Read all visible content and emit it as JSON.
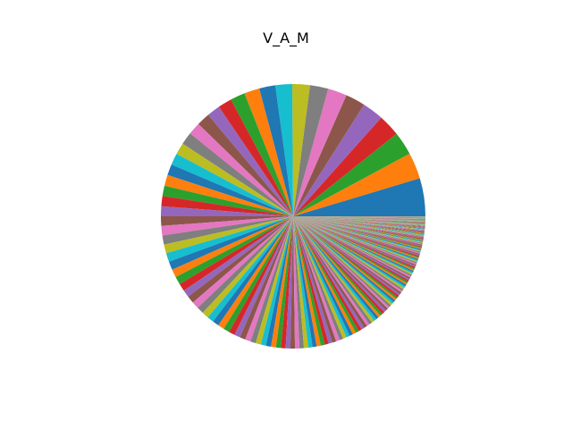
{
  "chart_data": {
    "type": "pie",
    "title": "V_A_M",
    "start_angle_deg": 0,
    "direction": "counterclockwise",
    "palette": [
      "#1f77b4",
      "#ff7f0e",
      "#2ca02c",
      "#d62728",
      "#9467bd",
      "#8c564b",
      "#e377c2",
      "#7f7f7f",
      "#bcbd22",
      "#17becf"
    ],
    "values": [
      5.2,
      3.6,
      3.2,
      3.0,
      2.9,
      2.7,
      2.6,
      2.5,
      2.4,
      2.3,
      2.2,
      2.1,
      2.0,
      1.9,
      1.8,
      1.8,
      1.7,
      1.7,
      1.6,
      1.6,
      1.5,
      1.5,
      1.4,
      1.4,
      1.35,
      1.3,
      1.3,
      1.25,
      1.2,
      1.2,
      1.15,
      1.1,
      1.1,
      1.05,
      1.0,
      1.0,
      0.97,
      0.95,
      0.92,
      0.9,
      0.88,
      0.86,
      0.84,
      0.82,
      0.8,
      0.78,
      0.76,
      0.74,
      0.72,
      0.7,
      0.69,
      0.68,
      0.66,
      0.65,
      0.64,
      0.62,
      0.61,
      0.6,
      0.59,
      0.58,
      0.57,
      0.56,
      0.55,
      0.54,
      0.53,
      0.52,
      0.51,
      0.5,
      0.49,
      0.48,
      0.47,
      0.46,
      0.45,
      0.44,
      0.43,
      0.42,
      0.41,
      0.4,
      0.39,
      0.38,
      0.37,
      0.36,
      0.35,
      0.34,
      0.33,
      0.32,
      0.31,
      0.3,
      0.3,
      0.29,
      0.29,
      0.28,
      0.28,
      0.27,
      0.27,
      0.26,
      0.26,
      0.25,
      0.25,
      0.24,
      0.24,
      0.23,
      0.23,
      0.22,
      0.22,
      0.21,
      0.21,
      0.2,
      0.2,
      0.2,
      0.19,
      0.19,
      0.18,
      0.18,
      0.18,
      0.17,
      0.17,
      0.17,
      0.16,
      0.16,
      0.16,
      0.15,
      0.15,
      0.15,
      0.14,
      0.14,
      0.14,
      0.14,
      0.13,
      0.13,
      0.13,
      0.13,
      0.12,
      0.12,
      0.12,
      0.12,
      0.11,
      0.11,
      0.11,
      0.11,
      0.1,
      0.1,
      0.1,
      0.1,
      0.1,
      0.09,
      0.09,
      0.09,
      0.09,
      0.09,
      0.08,
      0.08,
      0.08,
      0.08,
      0.08,
      0.08,
      0.07,
      0.07,
      0.07,
      0.07,
      0.07,
      0.07,
      0.06,
      0.06,
      0.06,
      0.06,
      0.06,
      0.06,
      0.06,
      0.05,
      0.05,
      0.05,
      0.05,
      0.05,
      0.05,
      0.05,
      0.05,
      0.04,
      0.04,
      0.04,
      0.04,
      0.04,
      0.04,
      0.04,
      0.04,
      0.04,
      0.03,
      0.03,
      0.03,
      0.03,
      0.03,
      0.03,
      0.03,
      0.03,
      0.03,
      0.03,
      0.02,
      0.02,
      0.02,
      0.02
    ]
  }
}
